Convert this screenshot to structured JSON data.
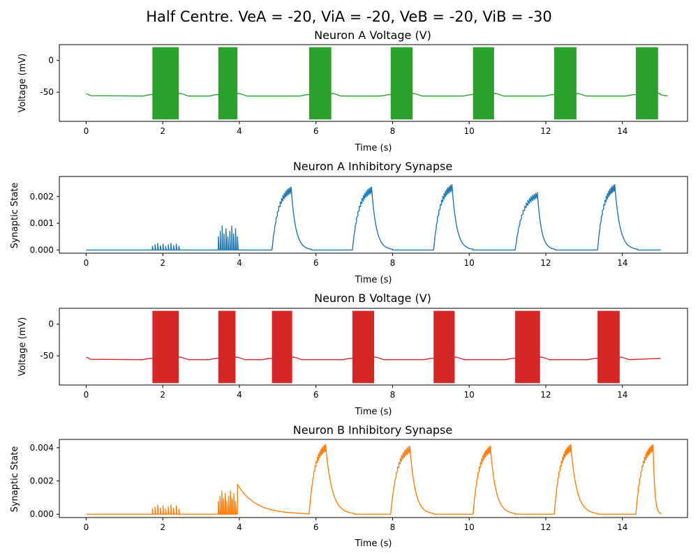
{
  "figure": {
    "title": "Half Centre. VeA = -20, ViA = -20, VeB = -20, ViB = -30"
  },
  "chart_data": [
    {
      "type": "line",
      "title": "Neuron A Voltage (V)",
      "xlabel": "Time (s)",
      "ylabel": "Voltage (mV)",
      "xlim": [
        -0.7,
        15.7
      ],
      "ylim": [
        -96,
        25
      ],
      "xticks": [
        0,
        2,
        4,
        6,
        8,
        10,
        12,
        14
      ],
      "yticks": [
        0,
        -50
      ],
      "color": "#2ca02c",
      "rest_level": -56,
      "spike_peak": 21,
      "spike_trough": -93,
      "bursts": [
        [
          1.73,
          2.42
        ],
        [
          3.45,
          3.95
        ],
        [
          5.82,
          6.4
        ],
        [
          7.95,
          8.52
        ],
        [
          10.1,
          10.65
        ],
        [
          12.22,
          12.8
        ],
        [
          14.35,
          14.93
        ]
      ]
    },
    {
      "type": "line",
      "title": "Neuron A Inhibitory Synapse",
      "xlabel": "Time (s)",
      "ylabel": "Synaptic State",
      "xlim": [
        -0.7,
        15.7
      ],
      "ylim": [
        -0.00012,
        0.00275
      ],
      "xticks": [
        0,
        2,
        4,
        6,
        8,
        10,
        12,
        14
      ],
      "yticks": [
        0,
        0.001,
        0.002
      ],
      "ytick_labels": [
        "0.000",
        "0.001",
        "0.002"
      ],
      "color": "#1f77b4",
      "pulses": [
        {
          "start": 4.85,
          "peak_time": 5.35,
          "peak": 0.00236,
          "end": 5.88
        },
        {
          "start": 6.95,
          "peak_time": 7.45,
          "peak": 0.00236,
          "end": 8.0
        },
        {
          "start": 9.07,
          "peak_time": 9.55,
          "peak": 0.00245,
          "end": 10.1
        },
        {
          "start": 11.2,
          "peak_time": 11.78,
          "peak": 0.00215,
          "end": 12.25
        },
        {
          "start": 13.35,
          "peak_time": 13.8,
          "peak": 0.00245,
          "end": 14.4
        }
      ],
      "early_spikes": [
        [
          1.73,
          2.42,
          0.00025
        ],
        [
          3.45,
          3.95,
          0.0009
        ]
      ]
    },
    {
      "type": "line",
      "title": "Neuron B Voltage (V)",
      "xlabel": "Time (s)",
      "ylabel": "Voltage (mV)",
      "xlim": [
        -0.7,
        15.7
      ],
      "ylim": [
        -96,
        25
      ],
      "xticks": [
        0,
        2,
        4,
        6,
        8,
        10,
        12,
        14
      ],
      "yticks": [
        0,
        -50
      ],
      "color": "#d62728",
      "rest_level": -56,
      "spike_peak": 21,
      "spike_trough": -93,
      "bursts": [
        [
          1.73,
          2.42
        ],
        [
          3.45,
          3.9
        ],
        [
          4.85,
          5.38
        ],
        [
          6.95,
          7.52
        ],
        [
          9.07,
          9.62
        ],
        [
          11.2,
          11.85
        ],
        [
          13.35,
          13.93
        ]
      ]
    },
    {
      "type": "line",
      "title": "Neuron B Inhibitory Synapse",
      "xlabel": "Time (s)",
      "ylabel": "Synaptic State",
      "xlim": [
        -0.7,
        15.7
      ],
      "ylim": [
        -0.0002,
        0.0045
      ],
      "xticks": [
        0,
        2,
        4,
        6,
        8,
        10,
        12,
        14
      ],
      "yticks": [
        0,
        0.002,
        0.004
      ],
      "ytick_labels": [
        "0.000",
        "0.002",
        "0.004"
      ],
      "color": "#ff7f0e",
      "pulses": [
        {
          "start": 5.82,
          "peak_time": 6.25,
          "peak": 0.0042,
          "end": 7.0
        },
        {
          "start": 7.95,
          "peak_time": 8.45,
          "peak": 0.0041,
          "end": 9.07
        },
        {
          "start": 10.1,
          "peak_time": 10.55,
          "peak": 0.0041,
          "end": 11.2
        },
        {
          "start": 12.22,
          "peak_time": 12.65,
          "peak": 0.0042,
          "end": 13.35
        },
        {
          "start": 14.35,
          "peak_time": 14.8,
          "peak": 0.0042,
          "end": 15.0
        }
      ],
      "early_spikes": [
        [
          1.73,
          2.42,
          0.00055
        ],
        [
          3.45,
          3.9,
          0.0014
        ]
      ],
      "early_decay": {
        "start": 3.95,
        "peak": 0.0018,
        "end": 5.8
      }
    }
  ]
}
